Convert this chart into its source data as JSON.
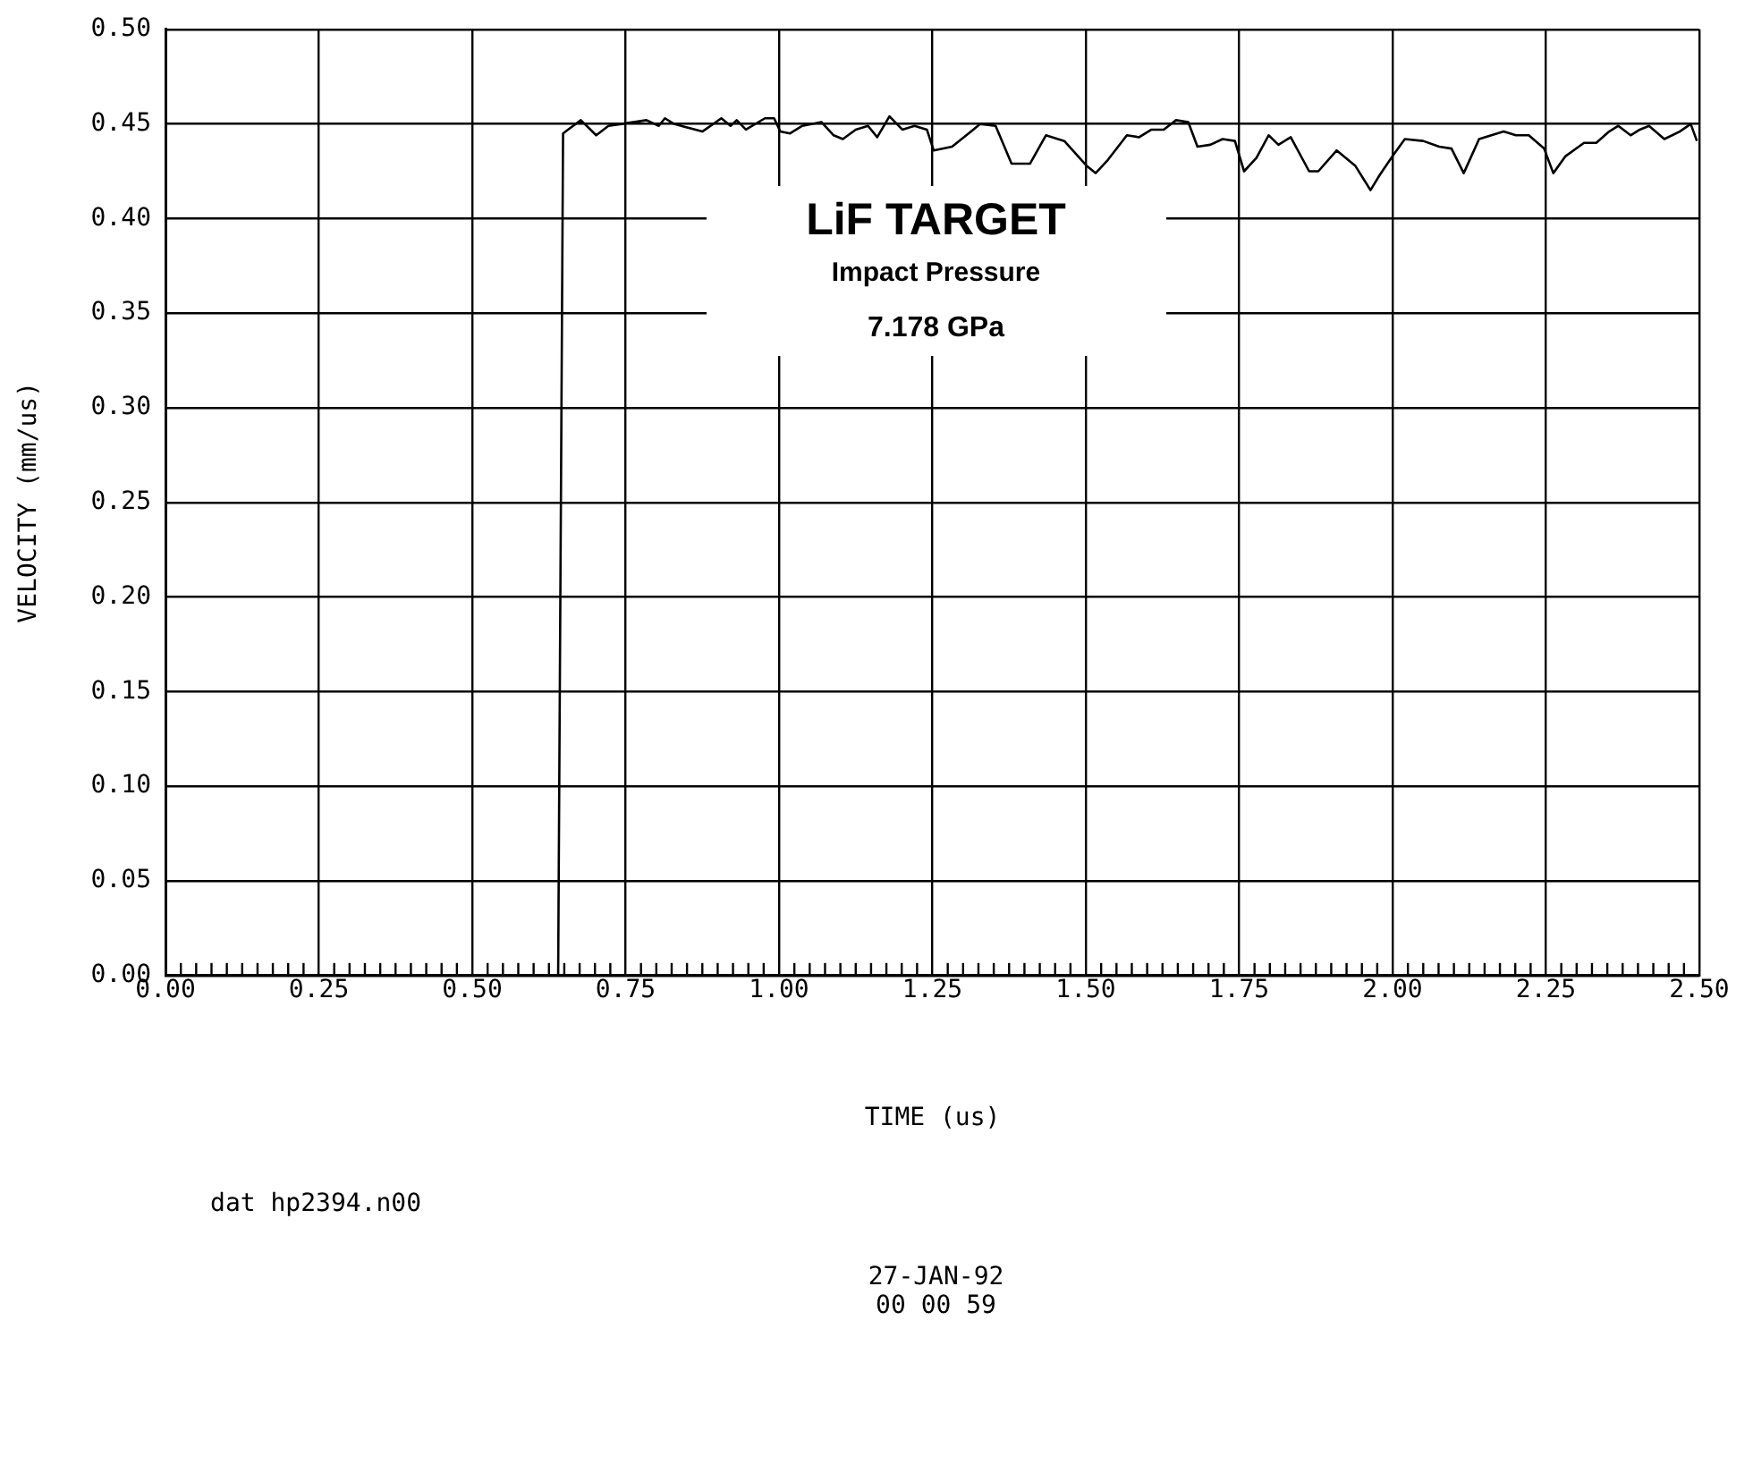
{
  "chart_data": {
    "type": "line",
    "xlabel": "TIME (us)",
    "ylabel": "VELOCITY (mm/us)",
    "annotations": [
      "LiF TARGET",
      "Impact Pressure",
      "7.178 GPa",
      "dat hp2394.n00",
      "27-JAN-92",
      "00 00 59"
    ],
    "xlim": [
      0,
      2.5
    ],
    "ylim": [
      0,
      0.5
    ],
    "xticks": [
      {
        "value": 0,
        "label": "0.00"
      },
      {
        "value": 0.025,
        "label": null
      },
      {
        "value": 0.05,
        "label": null
      },
      {
        "value": 0.075,
        "label": null
      },
      {
        "value": 0.1,
        "label": null
      },
      {
        "value": 0.125,
        "label": null
      },
      {
        "value": 0.15,
        "label": null
      },
      {
        "value": 0.175,
        "label": null
      },
      {
        "value": 0.2,
        "label": null
      },
      {
        "value": 0.225,
        "label": null
      },
      {
        "value": 0.25,
        "label": "0.25"
      },
      {
        "value": 0.275,
        "label": null
      },
      {
        "value": 0.3,
        "label": null
      },
      {
        "value": 0.325,
        "label": null
      },
      {
        "value": 0.35,
        "label": null
      },
      {
        "value": 0.375,
        "label": null
      },
      {
        "value": 0.4,
        "label": null
      },
      {
        "value": 0.425,
        "label": null
      },
      {
        "value": 0.45,
        "label": null
      },
      {
        "value": 0.475,
        "label": null
      },
      {
        "value": 0.5,
        "label": "0.50"
      },
      {
        "value": 0.525,
        "label": null
      },
      {
        "value": 0.55,
        "label": null
      },
      {
        "value": 0.575,
        "label": null
      },
      {
        "value": 0.6,
        "label": null
      },
      {
        "value": 0.625,
        "label": null
      },
      {
        "value": 0.65,
        "label": null
      },
      {
        "value": 0.675,
        "label": null
      },
      {
        "value": 0.7,
        "label": null
      },
      {
        "value": 0.725,
        "label": null
      },
      {
        "value": 0.75,
        "label": "0.75"
      },
      {
        "value": 0.775,
        "label": null
      },
      {
        "value": 0.8,
        "label": null
      },
      {
        "value": 0.825,
        "label": null
      },
      {
        "value": 0.85,
        "label": null
      },
      {
        "value": 0.875,
        "label": null
      },
      {
        "value": 0.9,
        "label": null
      },
      {
        "value": 0.925,
        "label": null
      },
      {
        "value": 0.95,
        "label": null
      },
      {
        "value": 0.975,
        "label": null
      },
      {
        "value": 1,
        "label": "1.00"
      },
      {
        "value": 1.025,
        "label": null
      },
      {
        "value": 1.05,
        "label": null
      },
      {
        "value": 1.075,
        "label": null
      },
      {
        "value": 1.1,
        "label": null
      },
      {
        "value": 1.125,
        "label": null
      },
      {
        "value": 1.15,
        "label": null
      },
      {
        "value": 1.175,
        "label": null
      },
      {
        "value": 1.2,
        "label": null
      },
      {
        "value": 1.225,
        "label": null
      },
      {
        "value": 1.25,
        "label": "1.25"
      },
      {
        "value": 1.275,
        "label": null
      },
      {
        "value": 1.3,
        "label": null
      },
      {
        "value": 1.325,
        "label": null
      },
      {
        "value": 1.35,
        "label": null
      },
      {
        "value": 1.375,
        "label": null
      },
      {
        "value": 1.4,
        "label": null
      },
      {
        "value": 1.425,
        "label": null
      },
      {
        "value": 1.45,
        "label": null
      },
      {
        "value": 1.475,
        "label": null
      },
      {
        "value": 1.5,
        "label": "1.50"
      },
      {
        "value": 1.525,
        "label": null
      },
      {
        "value": 1.55,
        "label": null
      },
      {
        "value": 1.575,
        "label": null
      },
      {
        "value": 1.6,
        "label": null
      },
      {
        "value": 1.625,
        "label": null
      },
      {
        "value": 1.65,
        "label": null
      },
      {
        "value": 1.675,
        "label": null
      },
      {
        "value": 1.7,
        "label": null
      },
      {
        "value": 1.725,
        "label": null
      },
      {
        "value": 1.75,
        "label": "1.75"
      },
      {
        "value": 1.775,
        "label": null
      },
      {
        "value": 1.8,
        "label": null
      },
      {
        "value": 1.825,
        "label": null
      },
      {
        "value": 1.85,
        "label": null
      },
      {
        "value": 1.875,
        "label": null
      },
      {
        "value": 1.9,
        "label": null
      },
      {
        "value": 1.925,
        "label": null
      },
      {
        "value": 1.95,
        "label": null
      },
      {
        "value": 1.975,
        "label": null
      },
      {
        "value": 2,
        "label": "2.00"
      },
      {
        "value": 2.025,
        "label": null
      },
      {
        "value": 2.05,
        "label": null
      },
      {
        "value": 2.075,
        "label": null
      },
      {
        "value": 2.1,
        "label": null
      },
      {
        "value": 2.125,
        "label": null
      },
      {
        "value": 2.15,
        "label": null
      },
      {
        "value": 2.175,
        "label": null
      },
      {
        "value": 2.2,
        "label": null
      },
      {
        "value": 2.225,
        "label": null
      },
      {
        "value": 2.25,
        "label": "2.25"
      },
      {
        "value": 2.275,
        "label": null
      },
      {
        "value": 2.3,
        "label": null
      },
      {
        "value": 2.325,
        "label": null
      },
      {
        "value": 2.35,
        "label": null
      },
      {
        "value": 2.375,
        "label": null
      },
      {
        "value": 2.4,
        "label": null
      },
      {
        "value": 2.425,
        "label": null
      },
      {
        "value": 2.45,
        "label": null
      },
      {
        "value": 2.475,
        "label": null
      },
      {
        "value": 2.5,
        "label": "2.50"
      }
    ],
    "yticks": [
      {
        "value": 0,
        "label": "0.00"
      },
      {
        "value": 0.05,
        "label": "0.05"
      },
      {
        "value": 0.1,
        "label": "0.10"
      },
      {
        "value": 0.15,
        "label": "0.15"
      },
      {
        "value": 0.2,
        "label": "0.20"
      },
      {
        "value": 0.25,
        "label": "0.25"
      },
      {
        "value": 0.3,
        "label": "0.30"
      },
      {
        "value": 0.35,
        "label": "0.35"
      },
      {
        "value": 0.4,
        "label": "0.40"
      },
      {
        "value": 0.45,
        "label": "0.45"
      },
      {
        "value": 0.5,
        "label": "0.50"
      }
    ],
    "grid": true,
    "marker": "none",
    "line_style": "solid",
    "series": [
      {
        "color": "#000000",
        "x": [
          0,
          0.64,
          0.648,
          0.656,
          0.677,
          0.702,
          0.722,
          0.743,
          0.784,
          0.804,
          0.814,
          0.829,
          0.875,
          0.906,
          0.921,
          0.931,
          0.946,
          0.977,
          0.992,
          1.002,
          1.018,
          1.038,
          1.069,
          1.089,
          1.104,
          1.125,
          1.145,
          1.16,
          1.18,
          1.201,
          1.221,
          1.241,
          1.252,
          1.282,
          1.313,
          1.328,
          1.353,
          1.379,
          1.409,
          1.435,
          1.465,
          1.501,
          1.516,
          1.536,
          1.567,
          1.587,
          1.607,
          1.627,
          1.647,
          1.667,
          1.682,
          1.703,
          1.723,
          1.743,
          1.758,
          1.778,
          1.798,
          1.814,
          1.834,
          1.864,
          1.879,
          1.909,
          1.939,
          1.964,
          1.979,
          2,
          2.02,
          2.05,
          2.076,
          2.096,
          2.116,
          2.141,
          2.161,
          2.181,
          2.201,
          2.222,
          2.247,
          2.262,
          2.282,
          2.312,
          2.332,
          2.353,
          2.368,
          2.388,
          2.403,
          2.418,
          2.443,
          2.468,
          2.486,
          2.496
        ],
        "values": [
          0,
          0,
          0.445,
          0.447,
          0.452,
          0.444,
          0.449,
          0.45,
          0.452,
          0.449,
          0.453,
          0.45,
          0.446,
          0.453,
          0.449,
          0.452,
          0.447,
          0.453,
          0.453,
          0.446,
          0.445,
          0.449,
          0.451,
          0.444,
          0.442,
          0.447,
          0.449,
          0.443,
          0.454,
          0.447,
          0.449,
          0.447,
          0.436,
          0.438,
          0.446,
          0.45,
          0.449,
          0.429,
          0.429,
          0.444,
          0.441,
          0.428,
          0.424,
          0.431,
          0.444,
          0.443,
          0.447,
          0.447,
          0.452,
          0.451,
          0.438,
          0.439,
          0.442,
          0.441,
          0.425,
          0.432,
          0.444,
          0.439,
          0.443,
          0.425,
          0.425,
          0.436,
          0.428,
          0.415,
          0.423,
          0.433,
          0.442,
          0.441,
          0.438,
          0.437,
          0.424,
          0.442,
          0.444,
          0.446,
          0.444,
          0.444,
          0.437,
          0.424,
          0.433,
          0.44,
          0.44,
          0.446,
          0.449,
          0.444,
          0.447,
          0.449,
          0.442,
          0.446,
          0.45,
          0.441
        ]
      }
    ]
  }
}
